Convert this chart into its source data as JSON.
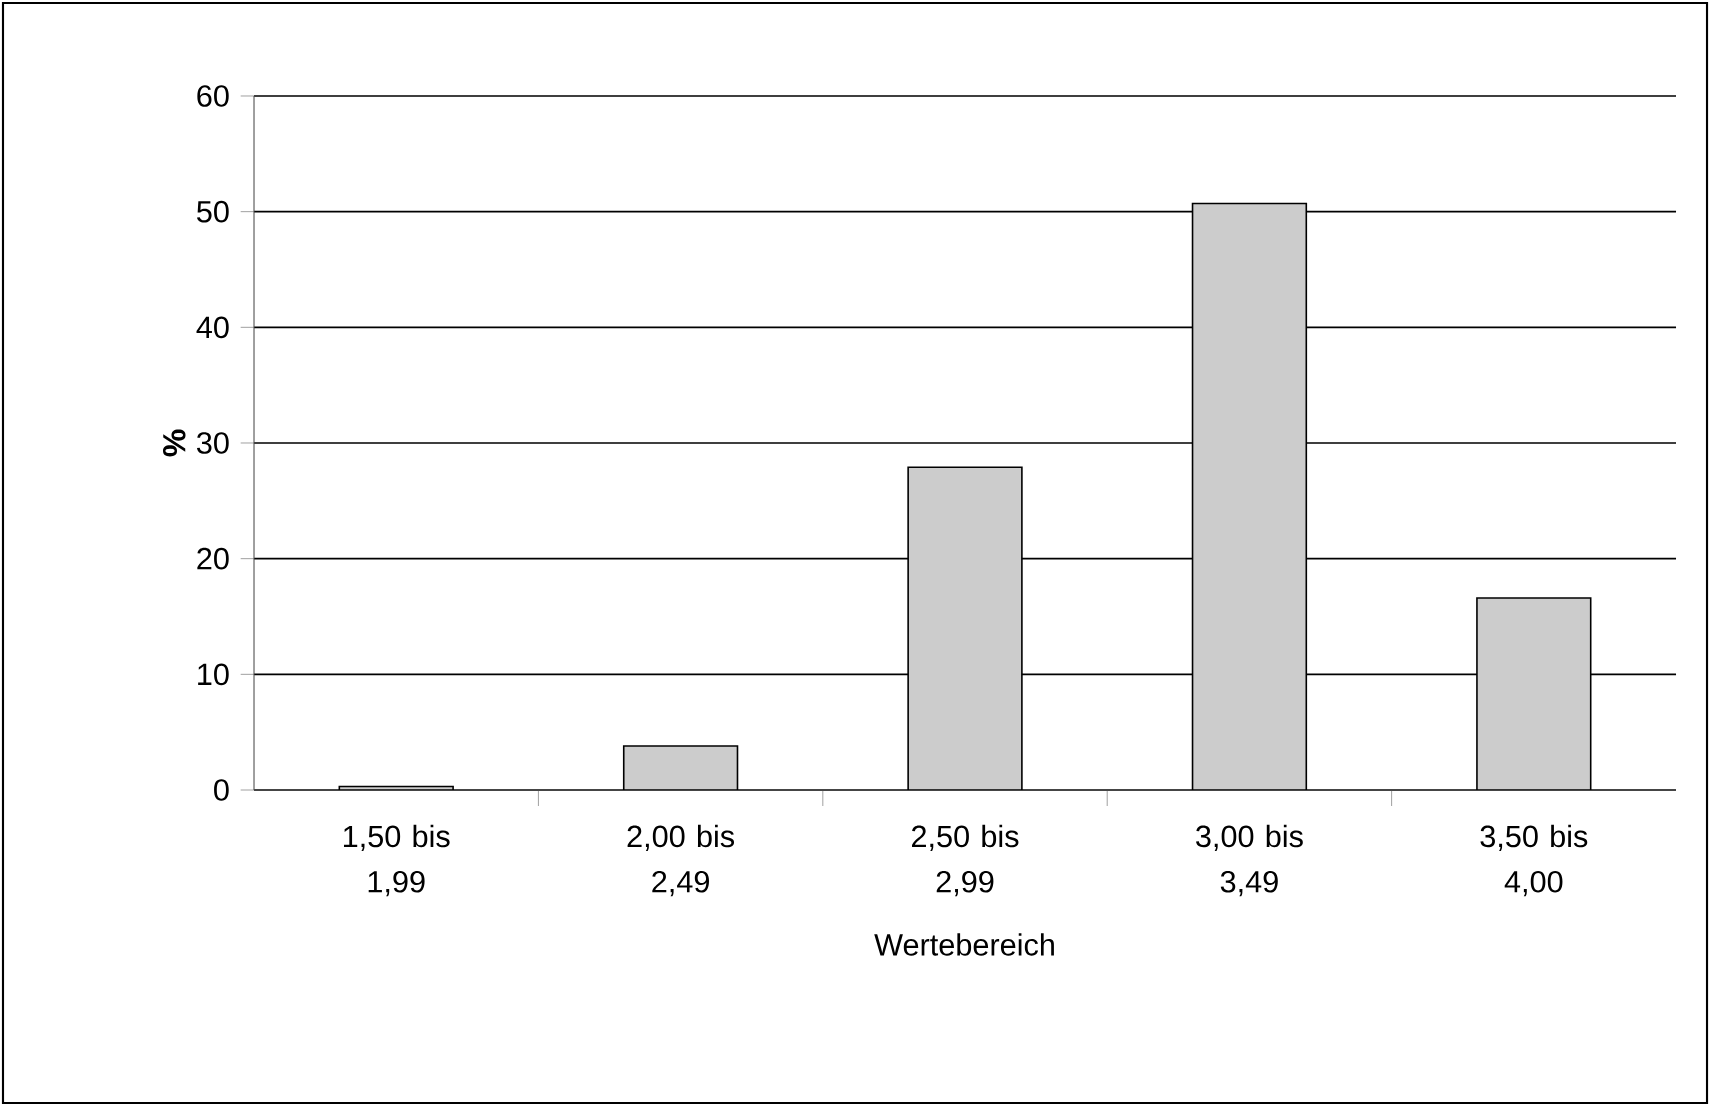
{
  "chart_data": {
    "type": "bar",
    "xlabel": "Wertebereich",
    "ylabel": "%",
    "categories": [
      "1,50 bis 1,99",
      "2,00 bis 2,49",
      "2,50 bis 2,99",
      "3,00 bis 3,49",
      "3,50 bis 4,00"
    ],
    "values": [
      0.3,
      3.8,
      27.9,
      50.7,
      16.6
    ],
    "color": "#cccccc",
    "ylim": [
      0,
      60
    ],
    "yticks": [
      0,
      10,
      20,
      30,
      40,
      50,
      60
    ],
    "grid": "y"
  }
}
